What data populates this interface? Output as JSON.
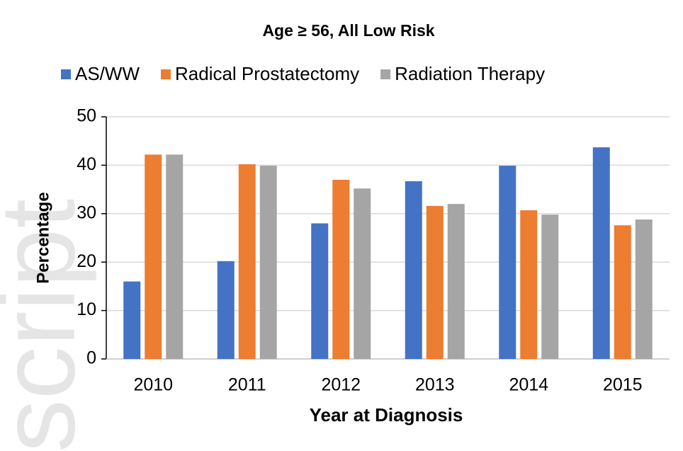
{
  "watermark": "script",
  "chart_data": {
    "type": "bar",
    "title": "Age ≥ 56, All Low Risk",
    "x_label": "Year at Diagnosis",
    "y_label": "Percentage",
    "categories": [
      "2010",
      "2011",
      "2012",
      "2013",
      "2014",
      "2015"
    ],
    "series": [
      {
        "name": "AS/WW",
        "color": "#4472c4",
        "values": [
          16,
          20.2,
          28,
          36.7,
          39.9,
          43.7
        ]
      },
      {
        "name": "Radical Prostatectomy",
        "color": "#ed7d31",
        "values": [
          42.2,
          40.2,
          37,
          31.6,
          30.7,
          27.6
        ]
      },
      {
        "name": "Radiation Therapy",
        "color": "#a5a5a5",
        "values": [
          42.2,
          39.9,
          35.2,
          32,
          29.8,
          28.8
        ]
      }
    ],
    "ylim": [
      0,
      50
    ],
    "yticks": [
      0,
      10,
      20,
      30,
      40,
      50
    ],
    "grid": true,
    "legend": "top"
  }
}
